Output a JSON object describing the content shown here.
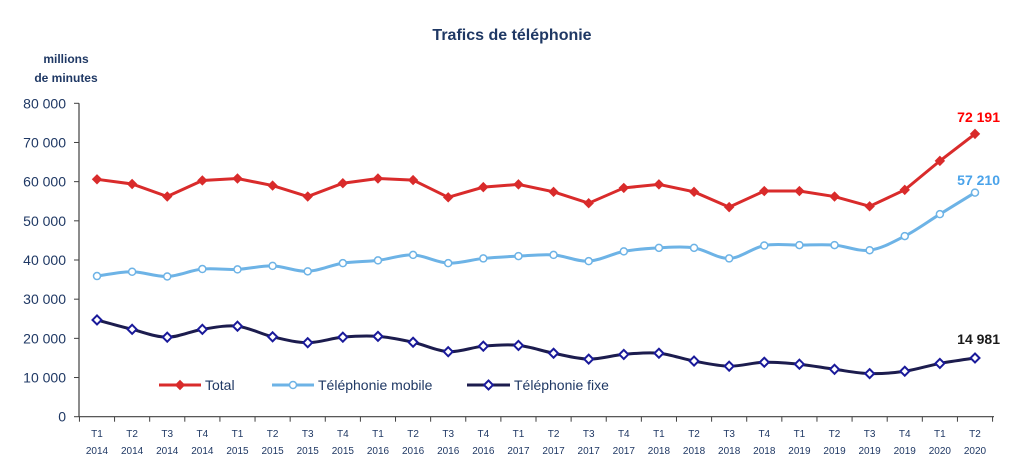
{
  "chart_data": {
    "type": "line",
    "title": "Trafics de téléphonie",
    "ylabel": [
      "millions",
      "de minutes"
    ],
    "xlabel": "",
    "ylim": [
      0,
      80000
    ],
    "yticks": [
      0,
      10000,
      20000,
      30000,
      40000,
      50000,
      60000,
      70000,
      80000
    ],
    "ytick_labels": [
      "0",
      "10 000",
      "20 000",
      "30 000",
      "40 000",
      "50 000",
      "60 000",
      "70 000",
      "80 000"
    ],
    "grid": false,
    "legend_position": "bottom-left inside",
    "categories": [
      [
        "T1",
        "2014"
      ],
      [
        "T2",
        "2014"
      ],
      [
        "T3",
        "2014"
      ],
      [
        "T4",
        "2014"
      ],
      [
        "T1",
        "2015"
      ],
      [
        "T2",
        "2015"
      ],
      [
        "T3",
        "2015"
      ],
      [
        "T4",
        "2015"
      ],
      [
        "T1",
        "2016"
      ],
      [
        "T2",
        "2016"
      ],
      [
        "T3",
        "2016"
      ],
      [
        "T4",
        "2016"
      ],
      [
        "T1",
        "2017"
      ],
      [
        "T2",
        "2017"
      ],
      [
        "T3",
        "2017"
      ],
      [
        "T4",
        "2017"
      ],
      [
        "T1",
        "2018"
      ],
      [
        "T2",
        "2018"
      ],
      [
        "T3",
        "2018"
      ],
      [
        "T4",
        "2018"
      ],
      [
        "T1",
        "2019"
      ],
      [
        "T2",
        "2019"
      ],
      [
        "T3",
        "2019"
      ],
      [
        "T4",
        "2019"
      ],
      [
        "T1",
        "2020"
      ],
      [
        "T2",
        "2020"
      ]
    ],
    "series": [
      {
        "name": "Total",
        "color": "#d92b2b",
        "label_color": "#ff0000",
        "marker": "diamond-filled",
        "smooth": false,
        "end_label": "72 191",
        "values": [
          60600,
          59400,
          56200,
          60300,
          60800,
          59000,
          56200,
          59600,
          60800,
          60400,
          56000,
          58600,
          59300,
          57400,
          54500,
          58400,
          59300,
          57400,
          53500,
          57600,
          57600,
          56200,
          53700,
          57900,
          65300,
          72191
        ]
      },
      {
        "name": "Téléphonie mobile",
        "color": "#6db3e6",
        "label_color": "#4aa3ea",
        "marker": "circle-open",
        "smooth": true,
        "end_label": "57 210",
        "values": [
          35900,
          37000,
          35800,
          37700,
          37600,
          38500,
          37100,
          39200,
          39900,
          41300,
          39200,
          40400,
          41000,
          41300,
          39700,
          42200,
          43100,
          43100,
          40400,
          43700,
          43800,
          43800,
          42500,
          46100,
          51700,
          57210
        ]
      },
      {
        "name": "Téléphonie fixe",
        "color": "#1c1c4e",
        "label_color": "#1a1a1a",
        "marker": "diamond-open",
        "smooth": true,
        "end_label": "14 981",
        "values": [
          24700,
          22300,
          20300,
          22300,
          23100,
          20400,
          18900,
          20300,
          20500,
          19000,
          16600,
          18000,
          18200,
          16200,
          14700,
          15900,
          16200,
          14200,
          12900,
          13900,
          13400,
          12100,
          11000,
          11600,
          13600,
          14981
        ]
      }
    ]
  }
}
